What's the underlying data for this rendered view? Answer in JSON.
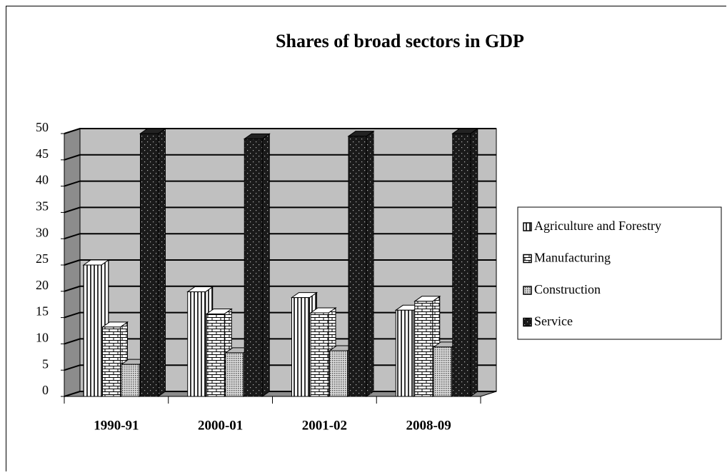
{
  "chart_data": {
    "type": "bar3d",
    "title": "Shares of broad sectors in GDP",
    "categories": [
      "1990-91",
      "2000-01",
      "2001-02",
      "2008-09"
    ],
    "series": [
      {
        "name": "Agriculture and Forestry",
        "color": "#ffffff",
        "values": [
          25,
          19.9,
          18.8,
          16.4
        ]
      },
      {
        "name": "Manufacturing",
        "color": "#ffffff",
        "values": [
          13.2,
          15.7,
          15.9,
          18.1
        ]
      },
      {
        "name": "Construction",
        "color": "#b8b8b8",
        "values": [
          6.1,
          8.3,
          8.7,
          9.4
        ]
      },
      {
        "name": "Service",
        "color": "#222222",
        "values": [
          50,
          49,
          49.5,
          50
        ]
      }
    ],
    "ylim": [
      0,
      50
    ],
    "yticks": [
      0,
      5,
      10,
      15,
      20,
      25,
      30,
      35,
      40,
      45,
      50
    ],
    "grid": true,
    "legend": "right"
  }
}
